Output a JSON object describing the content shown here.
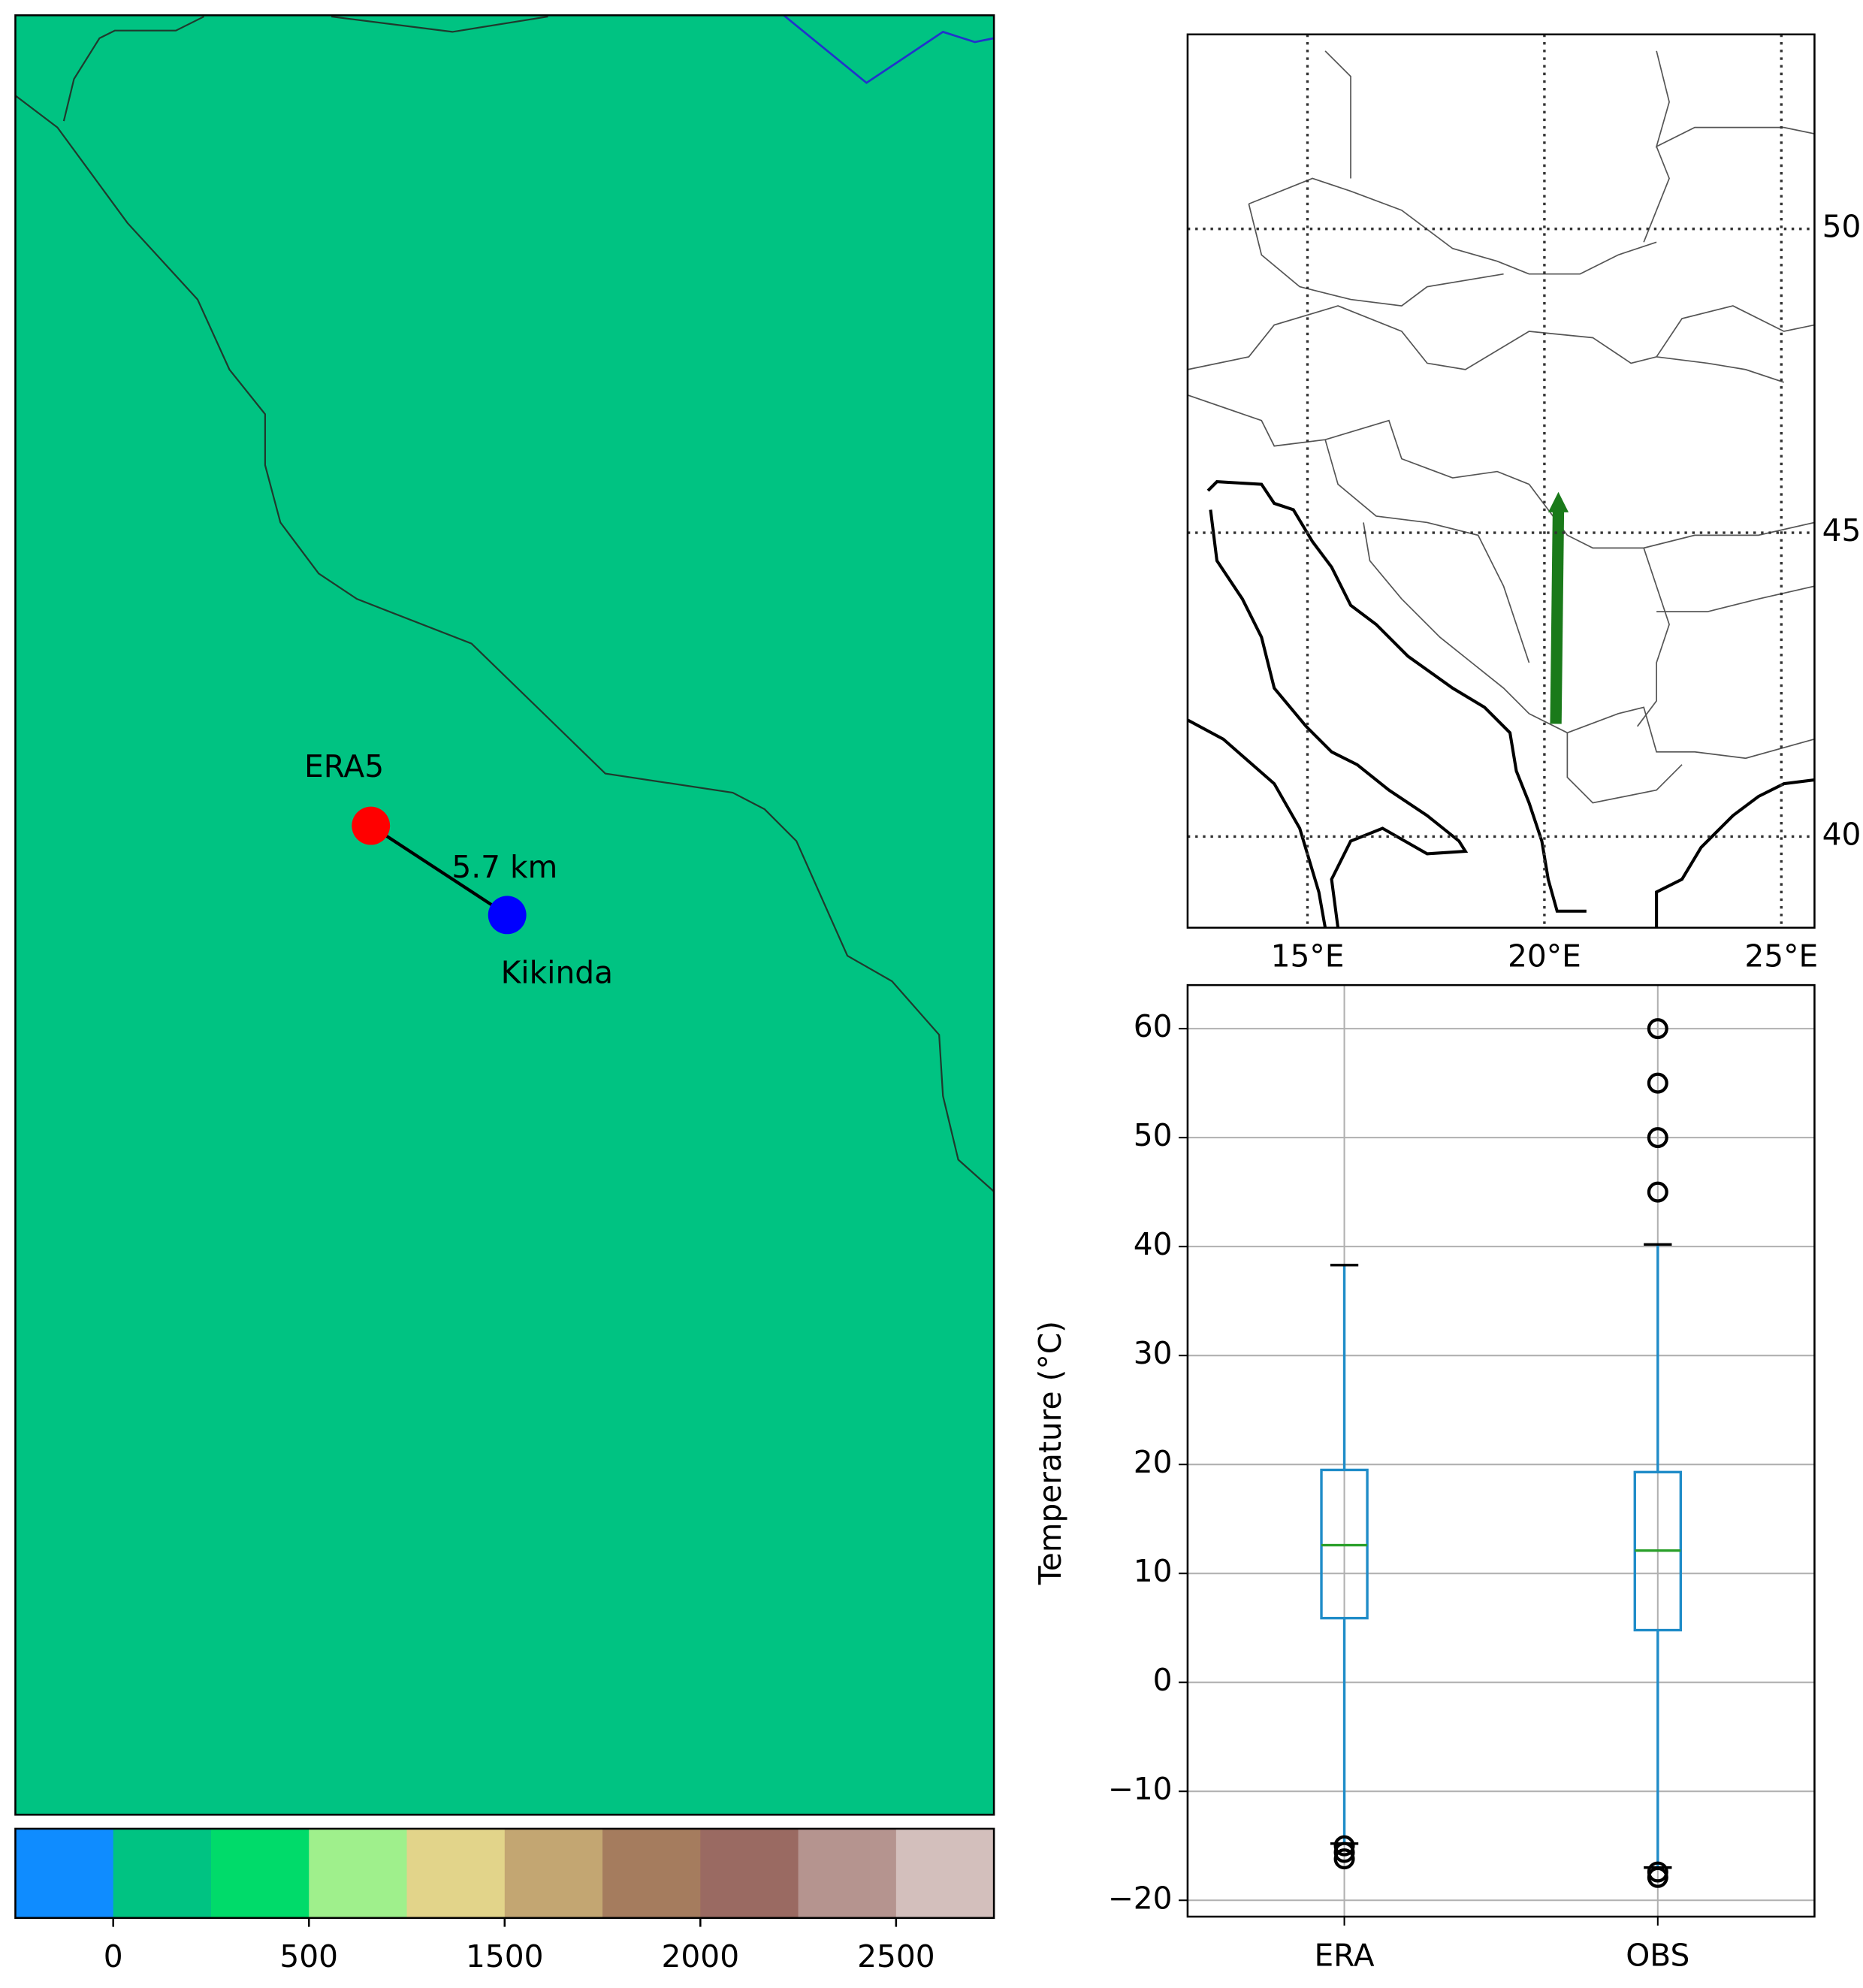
{
  "chart_data": [
    {
      "type": "map",
      "background": "#00c382",
      "points": [
        {
          "label": "ERA5",
          "color": "#ff0000"
        },
        {
          "label": "Kikinda",
          "color": "#0000ff"
        }
      ],
      "distance_label": "5.7 km"
    },
    {
      "type": "colorbar",
      "colors": [
        "#0f8cff",
        "#00c382",
        "#00db6a",
        "#9ff08c",
        "#e2d48a",
        "#c3a672",
        "#a57c5e",
        "#9a6a62",
        "#b5948f",
        "#d3bfbc"
      ],
      "boundaries": [
        null,
        0,
        null,
        500,
        null,
        1500,
        null,
        2000,
        null,
        2500,
        null
      ]
    },
    {
      "type": "locator",
      "xlim": [
        12.47,
        25.7
      ],
      "ylim": [
        38.5,
        53.2
      ],
      "xticks": [
        {
          "value": 15,
          "label": "15°E"
        },
        {
          "value": 20,
          "label": "20°E"
        },
        {
          "value": 25,
          "label": "25°E"
        }
      ],
      "yticks": [
        50,
        45,
        40
      ]
    },
    {
      "type": "box",
      "ylabel": "Temperature (°C)",
      "categories": [
        "ERA",
        "OBS"
      ],
      "xlim": [
        0.5,
        2.5
      ],
      "ylim": [
        -21.5,
        64
      ],
      "yticks": [
        60,
        50,
        40,
        30,
        20,
        10,
        0,
        {
          "value": -10,
          "label": "−10"
        },
        {
          "value": -20,
          "label": "−20"
        }
      ],
      "grid": true,
      "box_color": "#1f8cc8",
      "median_color": "#2ca02c",
      "boxes": [
        {
          "whislo": -14.8,
          "q1": 5.9,
          "med": 12.6,
          "q3": 19.5,
          "whishi": 38.3,
          "fliers": [
            -15,
            -15.6,
            -16.2
          ]
        },
        {
          "whislo": -17,
          "q1": 4.8,
          "med": 12.1,
          "q3": 19.3,
          "whishi": 40.2,
          "fliers": [
            60,
            55,
            50,
            45,
            -17.4,
            -17.9
          ]
        }
      ]
    }
  ]
}
